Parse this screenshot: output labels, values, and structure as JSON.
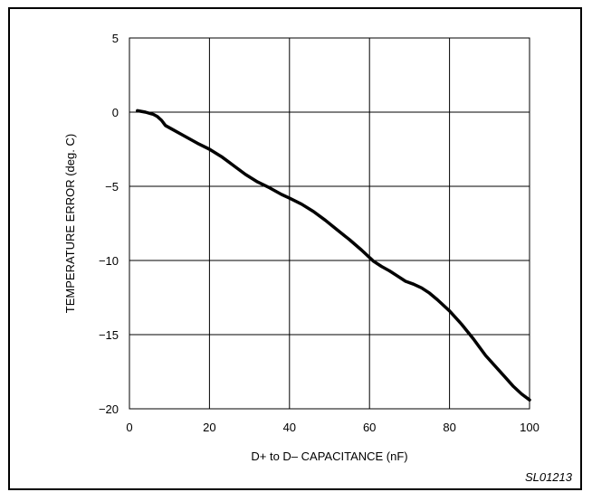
{
  "chart_data": {
    "type": "line",
    "title": "",
    "xlabel": "D+ to D– CAPACITANCE (nF)",
    "ylabel": "TEMPERATURE ERROR (deg. C)",
    "xlim": [
      0,
      100
    ],
    "ylim": [
      -20,
      5
    ],
    "x_ticks": [
      0,
      20,
      40,
      60,
      80,
      100
    ],
    "y_ticks": [
      5,
      0,
      -5,
      -10,
      -15,
      -20
    ],
    "x_tick_labels": [
      "0",
      "20",
      "40",
      "60",
      "80",
      "100"
    ],
    "y_tick_labels": [
      "5",
      "0",
      "−5",
      "−10",
      "−15",
      "−20"
    ],
    "grid": true,
    "legend": "none",
    "series": [
      {
        "color": "#000000",
        "x": [
          2,
          4,
          6,
          7,
          8,
          9,
          11,
          13,
          15,
          17,
          20,
          23,
          26,
          29,
          32,
          35,
          38,
          40,
          43,
          46,
          49,
          52,
          55,
          58,
          61,
          63,
          65,
          67,
          69,
          71,
          73,
          75,
          77,
          80,
          83,
          86,
          89,
          92,
          94,
          96,
          98,
          100
        ],
        "y": [
          0.1,
          0.0,
          -0.15,
          -0.3,
          -0.55,
          -0.9,
          -1.2,
          -1.5,
          -1.8,
          -2.1,
          -2.5,
          -3.0,
          -3.6,
          -4.2,
          -4.7,
          -5.1,
          -5.55,
          -5.8,
          -6.2,
          -6.7,
          -7.3,
          -7.95,
          -8.6,
          -9.3,
          -10.05,
          -10.4,
          -10.7,
          -11.05,
          -11.4,
          -11.6,
          -11.85,
          -12.2,
          -12.65,
          -13.4,
          -14.3,
          -15.3,
          -16.4,
          -17.3,
          -17.9,
          -18.5,
          -19.0,
          -19.4
        ]
      }
    ]
  },
  "figure_id": "SL01213"
}
